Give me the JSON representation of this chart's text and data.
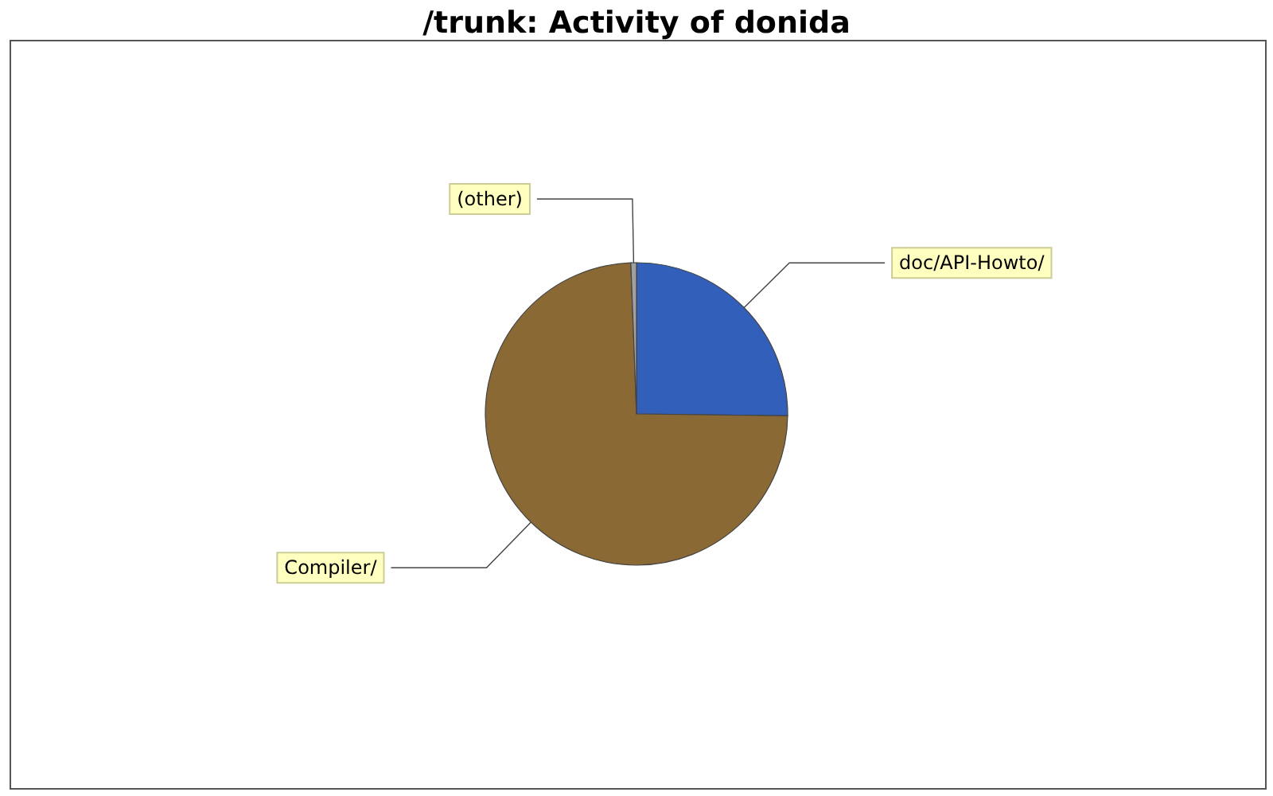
{
  "chart_data": {
    "type": "pie",
    "title": "/trunk: Activity of donida",
    "categories": [
      "doc/API-Howto/",
      "Compiler/",
      "(other)"
    ],
    "values": [
      25.2,
      74.2,
      0.6
    ],
    "colors": [
      "#325fba",
      "#8b6935",
      "#a0a0a0"
    ],
    "legend": false
  }
}
